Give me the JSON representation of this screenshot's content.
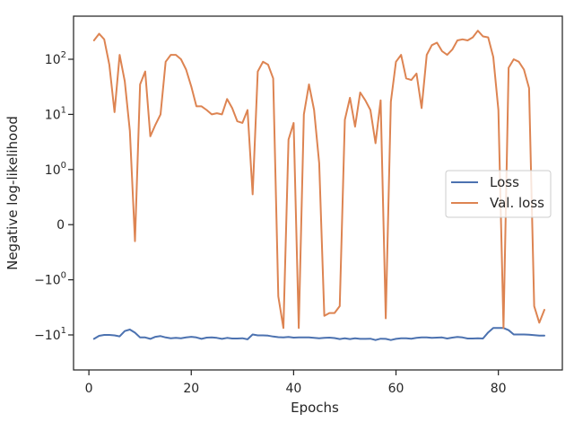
{
  "chart_data": {
    "type": "line",
    "xlabel": "Epochs",
    "ylabel": "Negative log-likelihood",
    "xlim": [
      -3,
      92.5
    ],
    "x_ticks": [
      0,
      20,
      40,
      60,
      80
    ],
    "y_scale": "symlog",
    "y_linthresh": 1,
    "y_ticks": [
      {
        "value": 100,
        "label": "10",
        "exp": "2"
      },
      {
        "value": 10,
        "label": "10",
        "exp": "1"
      },
      {
        "value": 1,
        "label": "10",
        "exp": "0"
      },
      {
        "value": 0,
        "label": "0",
        "exp": ""
      },
      {
        "value": -1,
        "label": "−10",
        "exp": "0"
      },
      {
        "value": -10,
        "label": "−10",
        "exp": "1"
      }
    ],
    "legend_position": "center-right",
    "grid": false,
    "series": [
      {
        "name": "Loss",
        "color": "#4c72b0",
        "x": [
          1,
          2,
          3,
          4,
          5,
          6,
          7,
          8,
          9,
          10,
          11,
          12,
          13,
          14,
          15,
          16,
          17,
          18,
          19,
          20,
          21,
          22,
          23,
          24,
          25,
          26,
          27,
          28,
          29,
          30,
          31,
          32,
          33,
          34,
          35,
          36,
          37,
          38,
          39,
          40,
          41,
          42,
          43,
          44,
          45,
          46,
          47,
          48,
          49,
          50,
          51,
          52,
          53,
          54,
          55,
          56,
          57,
          58,
          59,
          60,
          61,
          62,
          63,
          64,
          65,
          66,
          67,
          68,
          69,
          70,
          71,
          72,
          73,
          74,
          75,
          76,
          77,
          78,
          79,
          80,
          81,
          82,
          83,
          84,
          85,
          86,
          87,
          88,
          89
        ],
        "values": [
          -11.8,
          -10.4,
          -10.0,
          -10.0,
          -10.2,
          -10.6,
          -8.5,
          -8.0,
          -9.1,
          -11.1,
          -11.1,
          -11.8,
          -10.8,
          -10.5,
          -11.1,
          -11.5,
          -11.3,
          -11.5,
          -11.1,
          -10.8,
          -11.1,
          -11.8,
          -11.2,
          -11.1,
          -11.3,
          -11.8,
          -11.3,
          -11.6,
          -11.6,
          -11.5,
          -12.0,
          -9.8,
          -10.2,
          -10.2,
          -10.3,
          -10.7,
          -11.0,
          -11.1,
          -10.9,
          -11.2,
          -11.1,
          -11.1,
          -11.1,
          -11.3,
          -11.5,
          -11.3,
          -11.2,
          -11.4,
          -11.9,
          -11.5,
          -11.9,
          -11.5,
          -11.8,
          -11.8,
          -11.7,
          -12.4,
          -11.7,
          -11.8,
          -12.4,
          -11.8,
          -11.5,
          -11.5,
          -11.7,
          -11.3,
          -11.1,
          -11.1,
          -11.3,
          -11.2,
          -11.1,
          -11.6,
          -11.2,
          -10.9,
          -11.1,
          -11.6,
          -11.6,
          -11.5,
          -11.6,
          -9.0,
          -7.5,
          -7.5,
          -7.5,
          -8.2,
          -9.8,
          -9.8,
          -9.8,
          -9.9,
          -10.1,
          -10.3,
          -10.3
        ]
      },
      {
        "name": "Val. loss",
        "color": "#dd8452",
        "x": [
          1,
          2,
          3,
          4,
          5,
          6,
          7,
          8,
          9,
          10,
          11,
          12,
          13,
          14,
          15,
          16,
          17,
          18,
          19,
          20,
          21,
          22,
          23,
          24,
          25,
          26,
          27,
          28,
          29,
          30,
          31,
          32,
          33,
          34,
          35,
          36,
          37,
          38,
          39,
          40,
          41,
          42,
          43,
          44,
          45,
          46,
          47,
          48,
          49,
          50,
          51,
          52,
          53,
          54,
          55,
          56,
          57,
          58,
          59,
          60,
          61,
          62,
          63,
          64,
          65,
          66,
          67,
          68,
          69,
          70,
          71,
          72,
          73,
          74,
          75,
          76,
          77,
          78,
          79,
          80,
          81,
          82,
          83,
          84,
          85,
          86,
          87,
          88,
          89
        ],
        "values": [
          220,
          290,
          230,
          80,
          11,
          120,
          40,
          5,
          -0.3,
          35,
          60,
          4,
          6.5,
          10,
          90,
          120,
          120,
          100,
          65,
          32,
          14,
          14,
          12,
          10,
          10.5,
          10,
          19,
          13,
          7.5,
          7,
          12,
          0.55,
          60,
          90,
          80,
          45,
          -2,
          -7.5,
          3.5,
          7,
          -7.5,
          10,
          35,
          12,
          1.3,
          -4.5,
          -4,
          -4,
          -3,
          8,
          20,
          6,
          25,
          18,
          12,
          3,
          18,
          -5,
          17,
          90,
          120,
          45,
          42,
          55,
          13,
          120,
          180,
          200,
          140,
          120,
          150,
          220,
          230,
          220,
          250,
          330,
          260,
          250,
          110,
          12,
          -7.5,
          70,
          100,
          90,
          65,
          30,
          -3,
          -6,
          -3.5
        ]
      }
    ]
  }
}
